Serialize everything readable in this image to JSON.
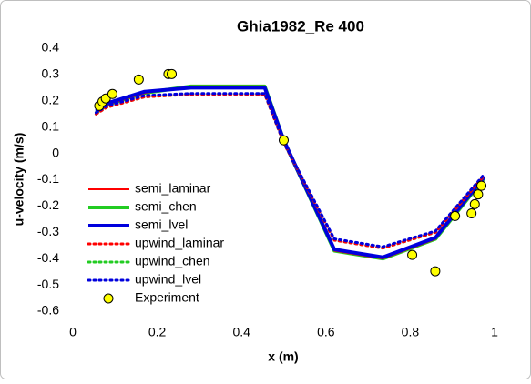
{
  "chart_data": {
    "type": "line",
    "title": "Ghia1982_Re 400",
    "x_label": "x (m)",
    "y_label": "u-velocity (m/s)",
    "xlim": [
      0,
      1
    ],
    "xticks": [
      0,
      0.2,
      0.4,
      0.6,
      0.8,
      1
    ],
    "ylim": [
      -0.6,
      0.4
    ],
    "yticks": [
      -0.6,
      -0.5,
      -0.4,
      -0.3,
      -0.2,
      -0.1,
      0,
      0.1,
      0.2,
      0.3,
      0.4
    ],
    "grid": false,
    "legend": "lower left",
    "series": [
      {
        "name": "semi_laminar",
        "color": "#ff0000",
        "style": "solid",
        "width": 2,
        "x": [
          0.055,
          0.08,
          0.17,
          0.28,
          0.455,
          0.5,
          0.62,
          0.735,
          0.86,
          0.975
        ],
        "values": [
          0.155,
          0.185,
          0.23,
          0.255,
          0.255,
          0.05,
          -0.37,
          -0.4,
          -0.325,
          -0.095
        ]
      },
      {
        "name": "semi_chen",
        "color": "#22cc22",
        "style": "solid",
        "width": 4,
        "x": [
          0.055,
          0.08,
          0.17,
          0.28,
          0.455,
          0.5,
          0.62,
          0.735,
          0.86,
          0.975
        ],
        "values": [
          0.155,
          0.185,
          0.23,
          0.255,
          0.255,
          0.05,
          -0.37,
          -0.4,
          -0.325,
          -0.095
        ]
      },
      {
        "name": "semi_lvel",
        "color": "#0000dd",
        "style": "solid",
        "width": 4,
        "x": [
          0.055,
          0.08,
          0.17,
          0.28,
          0.455,
          0.5,
          0.62,
          0.735,
          0.86,
          0.975
        ],
        "values": [
          0.16,
          0.19,
          0.235,
          0.25,
          0.25,
          0.05,
          -0.365,
          -0.395,
          -0.32,
          -0.09
        ]
      },
      {
        "name": "upwind_laminar",
        "color": "#ff0000",
        "style": "dotted",
        "width": 3,
        "x": [
          0.055,
          0.08,
          0.17,
          0.28,
          0.455,
          0.5,
          0.62,
          0.735,
          0.86,
          0.975
        ],
        "values": [
          0.15,
          0.175,
          0.215,
          0.225,
          0.225,
          0.04,
          -0.33,
          -0.36,
          -0.3,
          -0.085
        ]
      },
      {
        "name": "upwind_chen",
        "color": "#22cc22",
        "style": "dotted",
        "width": 3,
        "x": [
          0.055,
          0.08,
          0.17,
          0.28,
          0.455,
          0.5,
          0.62,
          0.735,
          0.86,
          0.975
        ],
        "values": [
          0.15,
          0.175,
          0.215,
          0.225,
          0.225,
          0.04,
          -0.33,
          -0.36,
          -0.3,
          -0.085
        ]
      },
      {
        "name": "upwind_lvel",
        "color": "#0000dd",
        "style": "dotted",
        "width": 3,
        "x": [
          0.055,
          0.08,
          0.17,
          0.28,
          0.455,
          0.5,
          0.62,
          0.735,
          0.86,
          0.975
        ],
        "values": [
          0.155,
          0.18,
          0.22,
          0.228,
          0.228,
          0.042,
          -0.325,
          -0.355,
          -0.295,
          -0.08
        ]
      },
      {
        "name": "Experiment",
        "color": "#ffff00",
        "style": "marker",
        "width": 1,
        "x": [
          0.0625,
          0.0703,
          0.0781,
          0.0938,
          0.1563,
          0.2266,
          0.2344,
          0.5,
          0.8047,
          0.8594,
          0.9063,
          0.9453,
          0.9531,
          0.9609,
          0.9688
        ],
        "values": [
          0.181,
          0.197,
          0.209,
          0.226,
          0.281,
          0.302,
          0.302,
          0.05,
          -0.386,
          -0.448,
          -0.238,
          -0.228,
          -0.193,
          -0.156,
          -0.123
        ]
      }
    ]
  }
}
